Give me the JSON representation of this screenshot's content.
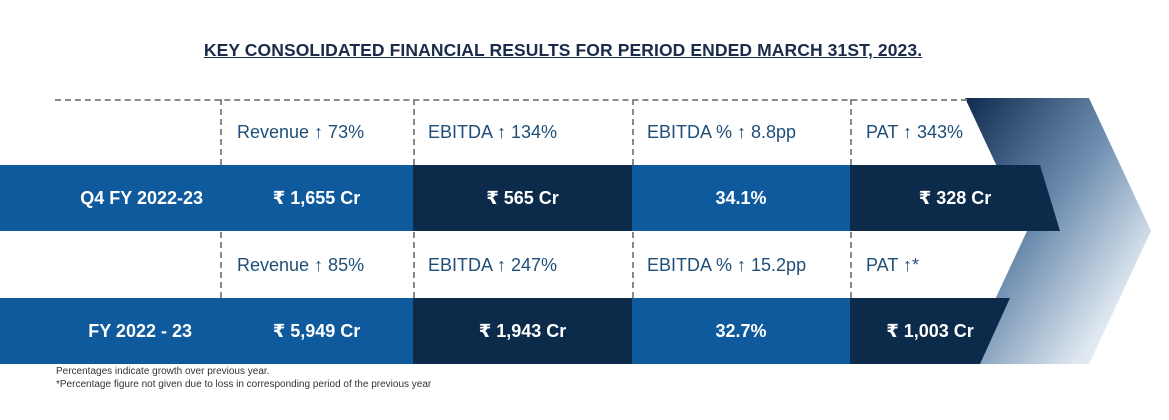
{
  "title": "KEY CONSOLIDATED FINANCIAL RESULTS FOR PERIOD ENDED MARCH 31ST, 2023.",
  "colors": {
    "title": "#1b2b4a",
    "growth_text": "#1f4e79",
    "band_blue": "#0e5a9d",
    "band_navy": "#0c2a4a",
    "dashed": "#8a8a8a"
  },
  "periods": [
    {
      "label": "Q4 FY 2022-23",
      "growth": [
        "Revenue ↑ 73%",
        "EBITDA ↑ 134%",
        "EBITDA % ↑ 8.8pp",
        "PAT ↑ 343%"
      ],
      "values": [
        "₹ 1,655 Cr",
        "₹ 565 Cr",
        "34.1%",
        "₹ 328 Cr"
      ]
    },
    {
      "label": "FY 2022 - 23",
      "growth": [
        "Revenue ↑ 85%",
        "EBITDA ↑ 247%",
        "EBITDA % ↑ 15.2pp",
        "PAT ↑*"
      ],
      "values": [
        "₹ 5,949 Cr",
        "₹ 1,943 Cr",
        "32.7%",
        "₹ 1,003 Cr"
      ]
    }
  ],
  "footnotes": [
    "Percentages indicate growth over previous year.",
    "*Percentage figure not given due to loss in corresponding period of the previous year"
  ],
  "decor": {
    "arrow": "chevron-arrow-icon"
  }
}
